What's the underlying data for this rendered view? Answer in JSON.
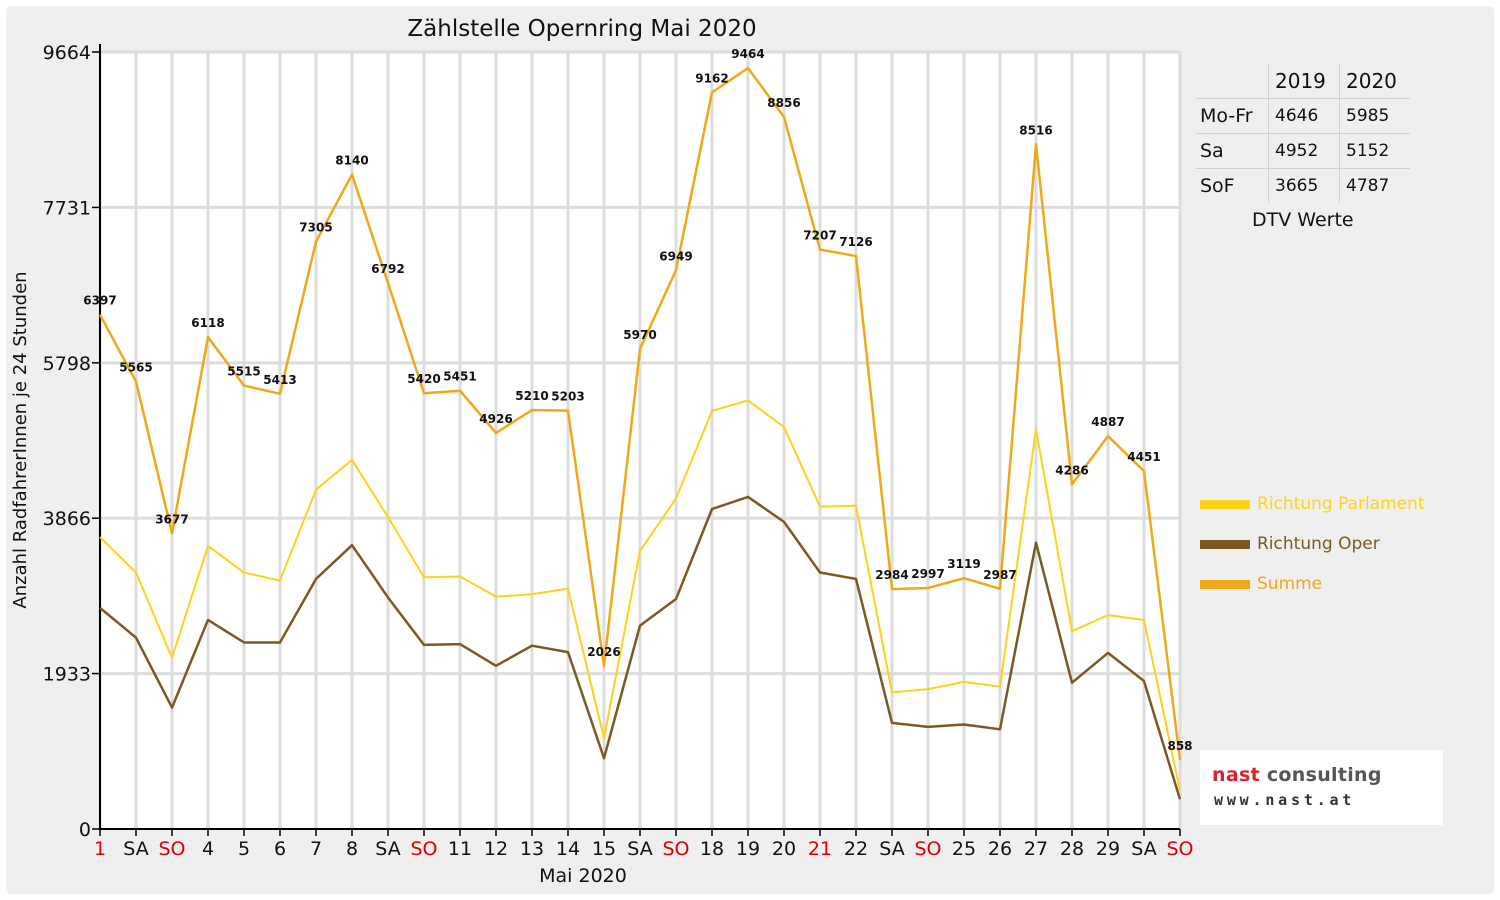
{
  "chart_data": {
    "type": "line",
    "title": "Zählstelle Opernring Mai 2020",
    "xlabel": "Mai 2020",
    "ylabel": "Anzahl RadfahrerInnen je 24 Stunden",
    "ylim": [
      0,
      9664
    ],
    "yticks": [
      "0",
      "1933",
      "3866",
      "5798",
      "7731",
      "9664"
    ],
    "categories": [
      "1",
      "SA",
      "SO",
      "4",
      "5",
      "6",
      "7",
      "8",
      "SA",
      "SO",
      "11",
      "12",
      "13",
      "14",
      "15",
      "SA",
      "SO",
      "18",
      "19",
      "20",
      "21",
      "22",
      "SA",
      "SO",
      "25",
      "26",
      "27",
      "28",
      "29",
      "SA",
      "SO"
    ],
    "red_categories": [
      0,
      2,
      9,
      16,
      20,
      23,
      30
    ],
    "grid": true,
    "legend_position": "right",
    "series": [
      {
        "name": "Richtung Parlament",
        "color": "#ffd11a",
        "values": [
          3630,
          3190,
          2130,
          3520,
          3190,
          3090,
          4220,
          4590,
          3880,
          3130,
          3140,
          2890,
          2920,
          2990,
          1130,
          3460,
          4110,
          5200,
          5330,
          5000,
          4010,
          4020,
          1700,
          1740,
          1830,
          1770,
          4970,
          2460,
          2660,
          2600,
          480
        ]
      },
      {
        "name": "Richtung Oper",
        "color": "#7a5a22",
        "values": [
          2750,
          2380,
          1510,
          2600,
          2320,
          2320,
          3110,
          3530,
          2880,
          2290,
          2300,
          2030,
          2280,
          2200,
          880,
          2530,
          2860,
          3980,
          4130,
          3820,
          3190,
          3110,
          1320,
          1270,
          1300,
          1240,
          3560,
          1820,
          2190,
          1840,
          370
        ]
      },
      {
        "name": "Summe",
        "color": "#f0a818",
        "values": [
          6397,
          5565,
          3677,
          6118,
          5515,
          5413,
          7305,
          8140,
          6792,
          5420,
          5451,
          4926,
          5210,
          5203,
          2026,
          5970,
          6949,
          9162,
          9464,
          8856,
          7207,
          7126,
          2984,
          2997,
          3119,
          2987,
          8516,
          4286,
          4887,
          4451,
          858
        ]
      }
    ],
    "data_labels": [
      "6397",
      "5565",
      "3677",
      "6118",
      "5515",
      "5413",
      "7305",
      "8140",
      "6792",
      "5420",
      "5451",
      "4926",
      "5210",
      "5203",
      "2026",
      "5970",
      "6949",
      "9162",
      "9464",
      "8856",
      "7207",
      "7126",
      "2984",
      "2997",
      "3119",
      "2987",
      "8516",
      "4286",
      "4887",
      "4451",
      "858"
    ]
  },
  "dtv_table": {
    "columns": [
      "",
      "2019",
      "2020"
    ],
    "rows": [
      {
        "label": "Mo-Fr",
        "v2019": "4646",
        "v2020": "5985"
      },
      {
        "label": "Sa",
        "v2019": "4952",
        "v2020": "5152"
      },
      {
        "label": "SoF",
        "v2019": "3665",
        "v2020": "4787"
      }
    ],
    "caption": "DTV Werte"
  },
  "logo": {
    "brand_red": "nast",
    "brand_grey": " consulting",
    "url": "www.nast.at"
  },
  "colors": {
    "weekend_label": "#e00000",
    "grid": "#dcdcdc",
    "axis": "#000000"
  }
}
